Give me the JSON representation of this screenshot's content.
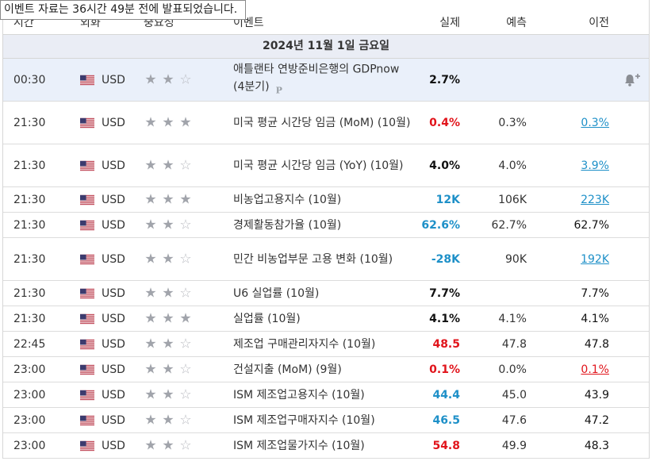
{
  "tooltip": "이벤트 자료는  36시간 49분  전에 발표되었습니다.",
  "headers": {
    "time": "시간",
    "currency": "외화",
    "importance": "중요성",
    "event": "이벤트",
    "actual": "실제",
    "forecast": "예측",
    "previous": "이전"
  },
  "date_label": "2024년 11월 1일 금요일",
  "colors": {
    "actual_green": "#2a7a27",
    "actual_red": "#e1141b",
    "actual_blue": "#1e90c8",
    "previous_blue": "#1e90c8",
    "previous_red": "#e1141b",
    "date_row_bg": "#eaedf5",
    "highlight_row_bg": "#eaf0fa"
  },
  "events": [
    {
      "time": "00:30",
      "currency": "USD",
      "importance": 2,
      "event": "애틀랜타 연방준비은행의 GDPnow (4분기)",
      "preliminary": "P",
      "actual": "2.7%",
      "actual_color": "black",
      "forecast": "",
      "previous": "",
      "previous_color": "black",
      "alert": "bell-plus-icon"
    },
    {
      "time": "21:30",
      "currency": "USD",
      "importance": 3,
      "event": "미국 평균 시간당 임금 (MoM) (10월)",
      "actual": "0.4%",
      "actual_color": "red",
      "forecast": "0.3%",
      "previous": "0.3%",
      "previous_color": "blue"
    },
    {
      "time": "21:30",
      "currency": "USD",
      "importance": 2,
      "event": "미국 평균 시간당 임금 (YoY) (10월)",
      "actual": "4.0%",
      "actual_color": "black",
      "forecast": "4.0%",
      "previous": "3.9%",
      "previous_color": "blue"
    },
    {
      "time": "21:30",
      "currency": "USD",
      "importance": 3,
      "event": "비농업고용지수 (10월)",
      "actual": "12K",
      "actual_color": "blue",
      "forecast": "106K",
      "previous": "223K",
      "previous_color": "blue"
    },
    {
      "time": "21:30",
      "currency": "USD",
      "importance": 2,
      "event": "경제활동참가율 (10월)",
      "actual": "62.6%",
      "actual_color": "blue",
      "forecast": "62.7%",
      "previous": "62.7%",
      "previous_color": "black"
    },
    {
      "time": "21:30",
      "currency": "USD",
      "importance": 2,
      "event": "민간 비농업부문 고용 변화 (10월)",
      "actual": "-28K",
      "actual_color": "blue",
      "forecast": "90K",
      "previous": "192K",
      "previous_color": "blue"
    },
    {
      "time": "21:30",
      "currency": "USD",
      "importance": 2,
      "event": "U6 실업률 (10월)",
      "actual": "7.7%",
      "actual_color": "black",
      "forecast": "",
      "previous": "7.7%",
      "previous_color": "black"
    },
    {
      "time": "21:30",
      "currency": "USD",
      "importance": 3,
      "event": "실업률 (10월)",
      "actual": "4.1%",
      "actual_color": "black",
      "forecast": "4.1%",
      "previous": "4.1%",
      "previous_color": "black"
    },
    {
      "time": "22:45",
      "currency": "USD",
      "importance": 2,
      "event": "제조업 구매관리자지수 (10월)",
      "actual": "48.5",
      "actual_color": "red",
      "forecast": "47.8",
      "previous": "47.8",
      "previous_color": "black"
    },
    {
      "time": "23:00",
      "currency": "USD",
      "importance": 2,
      "event": "건설지출 (MoM) (9월)",
      "actual": "0.1%",
      "actual_color": "red",
      "forecast": "0.0%",
      "previous": "0.1%",
      "previous_color": "red"
    },
    {
      "time": "23:00",
      "currency": "USD",
      "importance": 2,
      "event": "ISM 제조업고용지수 (10월)",
      "actual": "44.4",
      "actual_color": "blue",
      "forecast": "45.0",
      "previous": "43.9",
      "previous_color": "black"
    },
    {
      "time": "23:00",
      "currency": "USD",
      "importance": 2,
      "event": "ISM 제조업구매자지수 (10월)",
      "actual": "46.5",
      "actual_color": "blue",
      "forecast": "47.6",
      "previous": "47.2",
      "previous_color": "black"
    },
    {
      "time": "23:00",
      "currency": "USD",
      "importance": 2,
      "event": "ISM 제조업물가지수 (10월)",
      "actual": "54.8",
      "actual_color": "red",
      "forecast": "49.9",
      "previous": "48.3",
      "previous_color": "black"
    }
  ]
}
